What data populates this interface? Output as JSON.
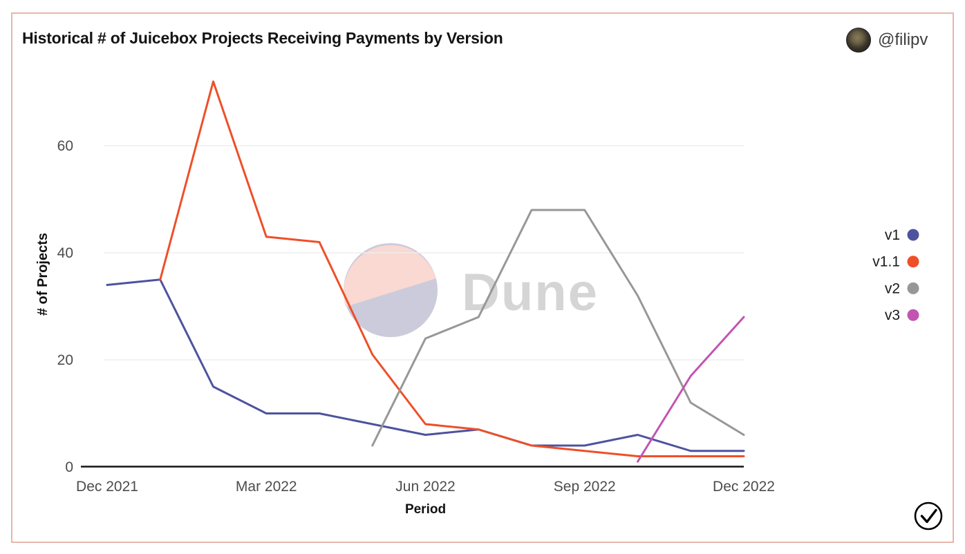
{
  "card": {
    "title": "Historical # of Juicebox Projects Receiving Payments by Version",
    "author": "@filipv",
    "border_color": "#eab4aa"
  },
  "watermark": {
    "text": "Dune",
    "text_color": "#d5d5d5",
    "circle_top_color": "#f9d9d2",
    "circle_bottom_color": "#cbcbdb"
  },
  "footer": {
    "verified_icon": "circled-checkmark"
  },
  "chart_data": {
    "type": "line",
    "title": "Historical # of Juicebox Projects Receiving Payments by Version",
    "xlabel": "Period",
    "ylabel": "# of Projects",
    "ylim": [
      0,
      74
    ],
    "yticks": [
      0,
      20,
      40,
      60
    ],
    "grid": "horizontal-only",
    "grid_color": "#ededed",
    "axis_color": "#141414",
    "tick_label_color": "#4c4c4c",
    "legend_position": "right",
    "x": [
      "Dec 2021",
      "Jan 2022",
      "Feb 2022",
      "Mar 2022",
      "Apr 2022",
      "May 2022",
      "Jun 2022",
      "Jul 2022",
      "Aug 2022",
      "Sep 2022",
      "Oct 2022",
      "Nov 2022",
      "Dec 2022"
    ],
    "xtick_labels": [
      "Dec 2021",
      "Mar 2022",
      "Jun 2022",
      "Sep 2022",
      "Dec 2022"
    ],
    "xtick_indices": [
      0,
      3,
      6,
      9,
      12
    ],
    "series": [
      {
        "name": "v1",
        "color": "#4e529e",
        "values": [
          34,
          35,
          15,
          10,
          10,
          8,
          6,
          7,
          4,
          4,
          6,
          3,
          3
        ]
      },
      {
        "name": "v1.1",
        "color": "#ee4f27",
        "values": [
          null,
          35,
          72,
          43,
          42,
          21,
          8,
          7,
          4,
          3,
          2,
          2,
          2
        ]
      },
      {
        "name": "v2",
        "color": "#979797",
        "values": [
          null,
          null,
          null,
          null,
          null,
          4,
          24,
          28,
          48,
          48,
          32,
          12,
          6
        ]
      },
      {
        "name": "v3",
        "color": "#c354b2",
        "values": [
          null,
          null,
          null,
          null,
          null,
          null,
          null,
          null,
          null,
          null,
          1,
          17,
          28
        ]
      }
    ]
  }
}
